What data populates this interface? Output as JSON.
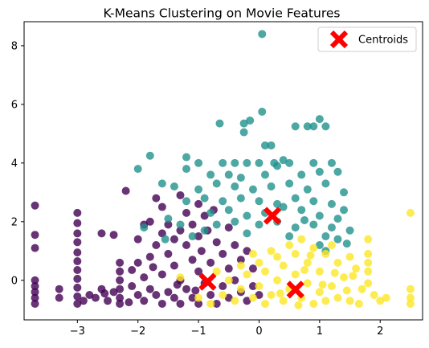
{
  "chart_data": {
    "type": "scatter",
    "title": "K-Means Clustering on Movie Features",
    "xlabel": "",
    "ylabel": "",
    "xlim": [
      -3.88,
      2.7
    ],
    "ylim": [
      -1.35,
      8.82
    ],
    "xticks": [
      -3,
      -2,
      -1,
      0,
      1,
      2
    ],
    "yticks": [
      0,
      2,
      4,
      6,
      8
    ],
    "grid": false,
    "legend_position": "top-right",
    "series": [
      {
        "color": "#440154",
        "alpha": 0.8,
        "points": [
          [
            -3.7,
            2.55
          ],
          [
            -3.7,
            1.55
          ],
          [
            -3.7,
            1.1
          ],
          [
            -3.7,
            0.0
          ],
          [
            -3.7,
            -0.2
          ],
          [
            -3.7,
            -0.4
          ],
          [
            -3.7,
            -0.6
          ],
          [
            -3.7,
            -0.8
          ],
          [
            -3.3,
            -0.3
          ],
          [
            -3.3,
            -0.6
          ],
          [
            -3.0,
            2.3
          ],
          [
            -3.0,
            1.95
          ],
          [
            -3.0,
            1.6
          ],
          [
            -3.0,
            1.3
          ],
          [
            -3.0,
            0.95
          ],
          [
            -3.0,
            0.65
          ],
          [
            -3.0,
            0.35
          ],
          [
            -3.0,
            0.05
          ],
          [
            -3.0,
            -0.25
          ],
          [
            -3.0,
            -0.55
          ],
          [
            -3.0,
            -0.8
          ],
          [
            -2.9,
            -0.7
          ],
          [
            -2.8,
            -0.5
          ],
          [
            -2.7,
            -0.6
          ],
          [
            -2.6,
            1.6
          ],
          [
            -2.6,
            -0.3
          ],
          [
            -2.5,
            -0.7
          ],
          [
            -2.4,
            1.55
          ],
          [
            -2.4,
            -0.4
          ],
          [
            -2.3,
            0.6
          ],
          [
            -2.3,
            0.3
          ],
          [
            -2.3,
            0.0
          ],
          [
            -2.3,
            -0.3
          ],
          [
            -2.3,
            -0.6
          ],
          [
            -2.3,
            -0.8
          ],
          [
            -2.2,
            3.05
          ],
          [
            -2.1,
            0.35
          ],
          [
            -2.1,
            -0.2
          ],
          [
            -2.0,
            1.4
          ],
          [
            -2.0,
            0.6
          ],
          [
            -2.0,
            -0.5
          ],
          [
            -1.9,
            1.9
          ],
          [
            -1.9,
            0.1
          ],
          [
            -1.9,
            -0.7
          ],
          [
            -1.8,
            2.0
          ],
          [
            -1.8,
            0.8
          ],
          [
            -1.8,
            -0.3
          ],
          [
            -1.7,
            2.8
          ],
          [
            -1.7,
            1.2
          ],
          [
            -1.7,
            -0.5
          ],
          [
            -1.6,
            2.5
          ],
          [
            -1.6,
            1.6
          ],
          [
            -1.6,
            0.2
          ],
          [
            -1.6,
            -0.8
          ],
          [
            -1.5,
            1.9
          ],
          [
            -1.5,
            0.9
          ],
          [
            -1.5,
            -0.4
          ],
          [
            -1.4,
            1.4
          ],
          [
            -1.4,
            0.5
          ],
          [
            -1.4,
            -0.6
          ],
          [
            -1.3,
            2.9
          ],
          [
            -1.3,
            1.7
          ],
          [
            -1.3,
            0.0
          ],
          [
            -1.3,
            -0.8
          ],
          [
            -1.2,
            2.3
          ],
          [
            -1.2,
            1.2
          ],
          [
            -1.2,
            -0.3
          ],
          [
            -1.1,
            1.9
          ],
          [
            -1.1,
            0.7
          ],
          [
            -1.1,
            -0.6
          ],
          [
            -1.0,
            2.6
          ],
          [
            -1.0,
            1.5
          ],
          [
            -1.0,
            0.3
          ],
          [
            -1.0,
            -0.8
          ],
          [
            -0.95,
            1.0
          ],
          [
            -0.9,
            2.2
          ],
          [
            -0.9,
            -0.1
          ],
          [
            -0.85,
            1.7
          ],
          [
            -0.8,
            0.6
          ],
          [
            -0.8,
            -0.5
          ],
          [
            -0.75,
            2.4
          ],
          [
            -0.7,
            1.3
          ],
          [
            -0.7,
            -0.8
          ],
          [
            -0.6,
            0.9
          ],
          [
            -0.6,
            -0.2
          ],
          [
            -0.5,
            1.8
          ],
          [
            -0.5,
            0.4
          ],
          [
            -0.5,
            -0.6
          ],
          [
            -0.4,
            1.2
          ],
          [
            -0.4,
            0.0
          ],
          [
            -0.3,
            0.7
          ],
          [
            -0.3,
            -0.4
          ],
          [
            -0.2,
            1.0
          ],
          [
            -0.2,
            -0.7
          ],
          [
            -0.1,
            0.4
          ],
          [
            -0.1,
            -0.2
          ],
          [
            0.0,
            -0.5
          ],
          [
            -2.55,
            -0.45
          ],
          [
            -2.15,
            -0.75
          ],
          [
            -1.75,
            0.45
          ],
          [
            -1.35,
            -0.15
          ],
          [
            -1.05,
            -0.35
          ]
        ]
      },
      {
        "color": "#21918c",
        "alpha": 0.8,
        "points": [
          [
            0.05,
            8.4
          ],
          [
            0.05,
            5.75
          ],
          [
            -0.25,
            5.35
          ],
          [
            -0.25,
            5.05
          ],
          [
            -0.15,
            5.45
          ],
          [
            -0.65,
            5.35
          ],
          [
            0.6,
            5.25
          ],
          [
            0.8,
            5.25
          ],
          [
            0.9,
            5.25
          ],
          [
            1.0,
            5.5
          ],
          [
            1.1,
            5.25
          ],
          [
            0.1,
            4.6
          ],
          [
            0.2,
            4.6
          ],
          [
            -1.8,
            4.25
          ],
          [
            0.4,
            4.1
          ],
          [
            -1.2,
            4.2
          ],
          [
            -1.0,
            4.0
          ],
          [
            -0.6,
            4.0
          ],
          [
            -0.4,
            4.0
          ],
          [
            -0.2,
            4.0
          ],
          [
            0.0,
            4.0
          ],
          [
            0.25,
            4.0
          ],
          [
            0.5,
            4.0
          ],
          [
            0.9,
            4.0
          ],
          [
            1.2,
            4.0
          ],
          [
            -2.0,
            3.8
          ],
          [
            -1.6,
            3.3
          ],
          [
            -1.2,
            3.8
          ],
          [
            -0.8,
            3.6
          ],
          [
            -0.5,
            3.6
          ],
          [
            -0.3,
            3.5
          ],
          [
            0.1,
            3.6
          ],
          [
            0.3,
            3.9
          ],
          [
            0.7,
            3.6
          ],
          [
            1.0,
            3.7
          ],
          [
            1.3,
            3.7
          ],
          [
            -1.4,
            3.2
          ],
          [
            -1.0,
            3.1
          ],
          [
            -0.7,
            3.3
          ],
          [
            -0.4,
            3.2
          ],
          [
            -0.1,
            3.1
          ],
          [
            0.2,
            3.2
          ],
          [
            0.5,
            3.3
          ],
          [
            0.8,
            3.1
          ],
          [
            1.1,
            3.3
          ],
          [
            1.4,
            3.0
          ],
          [
            -1.2,
            2.7
          ],
          [
            -0.9,
            2.8
          ],
          [
            -0.6,
            2.7
          ],
          [
            -0.3,
            2.8
          ],
          [
            0.0,
            2.7
          ],
          [
            0.3,
            2.6
          ],
          [
            0.6,
            2.8
          ],
          [
            0.9,
            2.7
          ],
          [
            1.2,
            2.6
          ],
          [
            1.4,
            2.4
          ],
          [
            -0.8,
            2.3
          ],
          [
            -0.5,
            2.4
          ],
          [
            -0.2,
            2.2
          ],
          [
            0.1,
            2.3
          ],
          [
            0.4,
            2.5
          ],
          [
            0.7,
            2.4
          ],
          [
            1.0,
            2.2
          ],
          [
            1.3,
            2.1
          ],
          [
            -1.5,
            2.1
          ],
          [
            -1.9,
            1.8
          ],
          [
            -0.7,
            1.9
          ],
          [
            -0.4,
            2.0
          ],
          [
            0.0,
            1.9
          ],
          [
            0.3,
            2.0
          ],
          [
            0.6,
            1.8
          ],
          [
            0.9,
            1.9
          ],
          [
            1.2,
            1.8
          ],
          [
            1.5,
            1.7
          ],
          [
            -0.9,
            1.7
          ],
          [
            1.3,
            1.4
          ],
          [
            -1.1,
            1.5
          ],
          [
            -0.2,
            1.6
          ],
          [
            0.5,
            1.5
          ],
          [
            1.1,
            1.5
          ],
          [
            1.0,
            1.2
          ],
          [
            1.1,
            1.0
          ],
          [
            -1.3,
            1.9
          ],
          [
            -1.55,
            1.4
          ],
          [
            1.45,
            1.25
          ],
          [
            0.75,
            2.05
          ]
        ]
      },
      {
        "color": "#fde725",
        "alpha": 0.8,
        "points": [
          [
            2.5,
            2.3
          ],
          [
            2.5,
            -0.3
          ],
          [
            2.5,
            -0.6
          ],
          [
            2.5,
            -0.8
          ],
          [
            1.8,
            1.4
          ],
          [
            1.8,
            0.9
          ],
          [
            1.8,
            0.6
          ],
          [
            1.8,
            0.3
          ],
          [
            1.8,
            -0.1
          ],
          [
            2.1,
            -0.6
          ],
          [
            2.0,
            -0.7
          ],
          [
            1.9,
            -0.5
          ],
          [
            1.7,
            -0.3
          ],
          [
            1.6,
            0.4
          ],
          [
            1.5,
            -0.7
          ],
          [
            1.5,
            0.8
          ],
          [
            1.4,
            0.1
          ],
          [
            1.3,
            -0.6
          ],
          [
            1.3,
            0.6
          ],
          [
            1.2,
            1.2
          ],
          [
            1.2,
            -0.2
          ],
          [
            1.1,
            0.9
          ],
          [
            1.1,
            -0.7
          ],
          [
            1.0,
            0.3
          ],
          [
            1.0,
            -0.4
          ],
          [
            0.9,
            1.1
          ],
          [
            0.9,
            -0.8
          ],
          [
            0.8,
            0.6
          ],
          [
            0.8,
            -0.1
          ],
          [
            0.7,
            1.4
          ],
          [
            0.7,
            -0.6
          ],
          [
            0.6,
            0.2
          ],
          [
            0.6,
            0.9
          ],
          [
            0.5,
            -0.3
          ],
          [
            0.5,
            1.2
          ],
          [
            0.4,
            0.5
          ],
          [
            0.4,
            -0.7
          ],
          [
            0.3,
            0.0
          ],
          [
            0.3,
            0.8
          ],
          [
            0.2,
            -0.5
          ],
          [
            0.2,
            1.0
          ],
          [
            0.1,
            0.3
          ],
          [
            0.1,
            -0.8
          ],
          [
            0.0,
            0.6
          ],
          [
            0.0,
            -0.2
          ],
          [
            -0.1,
            0.9
          ],
          [
            -0.1,
            -0.6
          ],
          [
            -0.2,
            0.2
          ],
          [
            -0.3,
            -0.3
          ],
          [
            -0.3,
            0.5
          ],
          [
            -0.4,
            -0.7
          ],
          [
            -0.5,
            0.0
          ],
          [
            -0.6,
            -0.5
          ],
          [
            -0.7,
            0.3
          ],
          [
            -0.8,
            -0.8
          ],
          [
            -1.0,
            -0.6
          ],
          [
            -1.3,
            0.1
          ],
          [
            0.75,
            0.35
          ],
          [
            1.25,
            0.25
          ],
          [
            1.65,
            -0.8
          ],
          [
            1.05,
            -0.15
          ],
          [
            0.85,
            0.85
          ],
          [
            0.35,
            -0.45
          ],
          [
            1.45,
            -0.35
          ],
          [
            0.65,
            -0.85
          ],
          [
            1.55,
            0.15
          ]
        ]
      }
    ],
    "centroids": {
      "label": "Centroids",
      "color": "#ff0000",
      "points": [
        [
          -0.85,
          -0.05
        ],
        [
          0.22,
          2.2
        ],
        [
          0.6,
          -0.32
        ]
      ]
    }
  }
}
